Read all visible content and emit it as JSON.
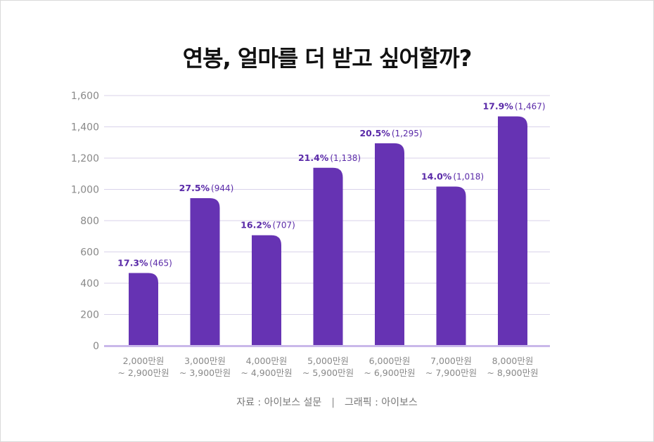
{
  "title": "연봉, 얼마를 더 받고 싶어할까?",
  "source": {
    "data_label": "자료 : 아이보스 설문",
    "separator": "|",
    "graphic_label": "그래픽 : 아이보스"
  },
  "colors": {
    "bar": "#6633b3",
    "label": "#5a2aa8",
    "grid": "#d9d2ea",
    "axis": "#c9b8ea",
    "tick": "#888888"
  },
  "chart_data": {
    "type": "bar",
    "title": "",
    "xlabel": "",
    "ylabel": "",
    "ylim": [
      0,
      1600
    ],
    "yticks": [
      0,
      200,
      400,
      600,
      800,
      1000,
      1200,
      1400,
      1600
    ],
    "ytick_labels": [
      "0",
      "200",
      "400",
      "600",
      "800",
      "1,000",
      "1,200",
      "1,400",
      "1,600"
    ],
    "grid": true,
    "categories": [
      [
        "2,000만원",
        "~ 2,900만원"
      ],
      [
        "3,000만원",
        "~ 3,900만원"
      ],
      [
        "4,000만원",
        "~ 4,900만원"
      ],
      [
        "5,000만원",
        "~ 5,900만원"
      ],
      [
        "6,000만원",
        "~ 6,900만원"
      ],
      [
        "7,000만원",
        "~ 7,900만원"
      ],
      [
        "8,000만원",
        "~ 8,900만원"
      ]
    ],
    "values": [
      465,
      944,
      707,
      1138,
      1295,
      1018,
      1467
    ],
    "value_labels": [
      "(465)",
      "(944)",
      "(707)",
      "(1,138)",
      "(1,295)",
      "(1,018)",
      "(1,467)"
    ],
    "percent_labels": [
      "17.3%",
      "27.5%",
      "16.2%",
      "21.4%",
      "20.5%",
      "14.0%",
      "17.9%"
    ]
  }
}
